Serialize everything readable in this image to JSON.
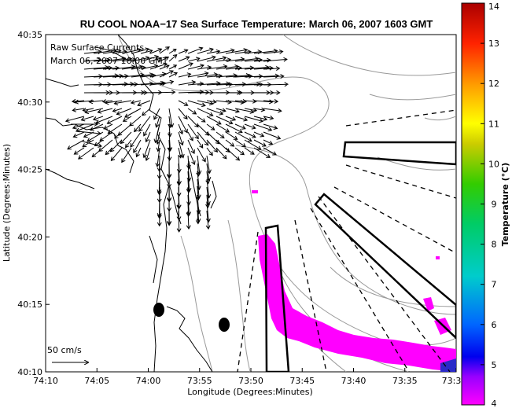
{
  "colors": {
    "title": "#1a1ab4",
    "annotation": "#1a1ab4",
    "sst_patch": "#ff00ff",
    "coast": "#000000",
    "bathymetry": "#999999",
    "vectors": "#000000",
    "colorbar_stops": [
      "#ff00ff",
      "#1e1eaa",
      "#00cccc",
      "#33cc33",
      "#ffff00",
      "#ff6600",
      "#aa0000"
    ]
  },
  "chart_data": {
    "type": "map",
    "title": "RU COOL  NOAA−17  Sea Surface Temperature:  March 06, 2007 1603 GMT",
    "annotation": [
      "Raw Surface Currents",
      "March 06, 2007 16:00 GMT"
    ],
    "xlabel": "Longitude (Degrees:Minutes)",
    "ylabel": "Latitude (Degrees:Minutes)",
    "x_ticks": [
      "74:10",
      "74:05",
      "74:00",
      "73:55",
      "73:50",
      "73:45",
      "73:40",
      "73:35",
      "73:3"
    ],
    "y_ticks": [
      "40:35",
      "40:30",
      "40:25",
      "40:20",
      "40:15",
      "40:10"
    ],
    "xlim": [
      -74.1667,
      -73.5
    ],
    "ylim": [
      40.1667,
      40.5833
    ],
    "scale_vector_label": "50 cm/s",
    "colorbar": {
      "label": "Temperature (°C)",
      "ticks": [
        "4",
        "5",
        "6",
        "7",
        "8",
        "9",
        "10",
        "11",
        "12",
        "13",
        "14"
      ],
      "range": [
        4,
        14
      ]
    },
    "overlays": [
      "sea surface temperature",
      "surface current vectors",
      "bathymetry contours",
      "coastline",
      "dashed transect lines",
      "outlined boxes"
    ]
  }
}
